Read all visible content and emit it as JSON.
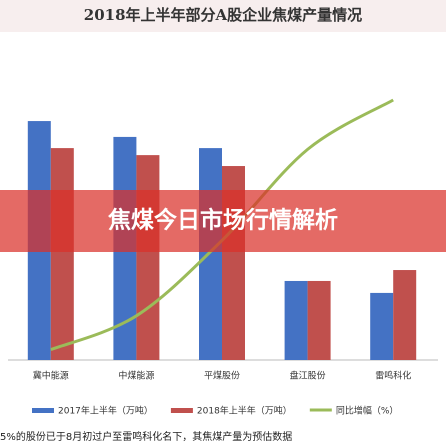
{
  "chart_data": {
    "type": "bar-line",
    "title": "2018年上半年部分A股企业焦煤产量情况",
    "categories": [
      "冀中能源",
      "中煤能源",
      "平煤股份",
      "盘江股份",
      "雷鸣科化"
    ],
    "series": [
      {
        "name": "2017年上半年（万吨）",
        "color": "#4472c4",
        "type": "bar",
        "values": [
          919,
          858,
          815,
          304,
          258
        ]
      },
      {
        "name": "2018年上半年（万吨）",
        "color": "#c0504d",
        "type": "bar",
        "values": [
          815,
          788,
          746,
          304,
          346
        ]
      },
      {
        "name": "同比增幅（%）",
        "color": "#9bbb59",
        "type": "line",
        "axis": "y2",
        "values": [
          -16,
          -3,
          26,
          61,
          80
        ]
      }
    ],
    "ylim": [
      0,
      1000
    ],
    "y2lim": [
      -20,
      80
    ],
    "legend": "bottom"
  },
  "banner": "焦煤今日市场行情解析",
  "footnote": "5%的股份已于8月初过户至雷鸣科化名下，其焦煤产量为预估数据"
}
